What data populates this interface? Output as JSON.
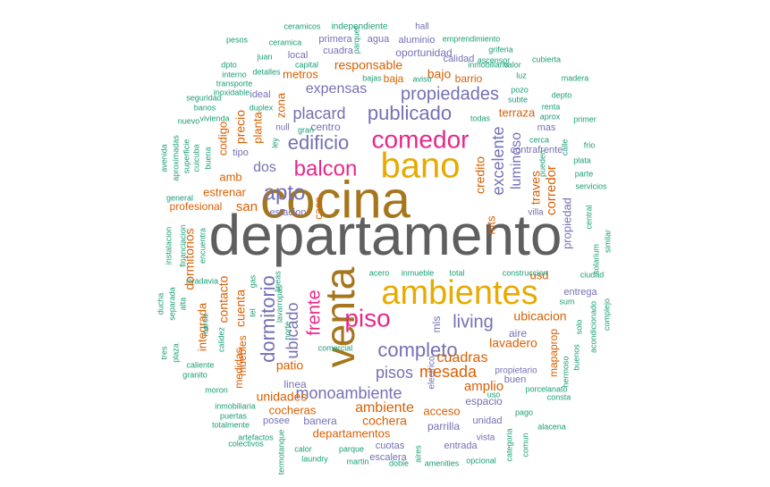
{
  "palette": {
    "gray": "#5f5f5f",
    "gold": "#e6ab02",
    "olive": "#a6761d",
    "pink": "#e7298a",
    "purple": "#7570b3",
    "orange": "#d95f02",
    "teal": "#1b9e77"
  },
  "words": [
    {
      "text": "departamento",
      "color": "gray"
    },
    {
      "text": "cocina",
      "color": "olive"
    },
    {
      "text": "bano",
      "color": "gold"
    },
    {
      "text": "ambientes",
      "color": "gold"
    },
    {
      "text": "venta",
      "color": "olive"
    },
    {
      "text": "comedor",
      "color": "pink"
    },
    {
      "text": "balcon",
      "color": "pink"
    },
    {
      "text": "apto",
      "color": "purple"
    },
    {
      "text": "piso",
      "color": "pink"
    },
    {
      "text": "completo",
      "color": "purple"
    },
    {
      "text": "edificio",
      "color": "purple"
    },
    {
      "text": "publicado",
      "color": "purple"
    },
    {
      "text": "propiedades",
      "color": "purple"
    },
    {
      "text": "dormitorio",
      "color": "purple"
    },
    {
      "text": "frente",
      "color": "pink"
    },
    {
      "text": "living",
      "color": "purple"
    },
    {
      "text": "pisos",
      "color": "purple"
    },
    {
      "text": "monoambiente",
      "color": "purple"
    },
    {
      "text": "placard",
      "color": "purple"
    },
    {
      "text": "expensas",
      "color": "purple"
    },
    {
      "text": "dos",
      "color": "purple"
    },
    {
      "text": "ubicado",
      "color": "purple"
    },
    {
      "text": "mesada",
      "color": "orange"
    },
    {
      "text": "cuadras",
      "color": "orange"
    },
    {
      "text": "ambiente",
      "color": "orange"
    },
    {
      "text": "excelente",
      "color": "purple"
    },
    {
      "text": "luminoso",
      "color": "purple"
    },
    {
      "text": "credito",
      "color": "orange"
    },
    {
      "text": "amplio",
      "color": "orange"
    },
    {
      "text": "lavadero",
      "color": "orange"
    },
    {
      "text": "ubicacion",
      "color": "orange"
    },
    {
      "text": "patio",
      "color": "orange"
    },
    {
      "text": "unidades",
      "color": "orange"
    },
    {
      "text": "cocheras",
      "color": "orange"
    },
    {
      "text": "cochera",
      "color": "orange"
    },
    {
      "text": "departamentos",
      "color": "orange"
    },
    {
      "text": "acceso",
      "color": "orange"
    },
    {
      "text": "estrenar",
      "color": "orange"
    },
    {
      "text": "san",
      "color": "orange"
    },
    {
      "text": "amb",
      "color": "orange"
    },
    {
      "text": "responsable",
      "color": "orange"
    },
    {
      "text": "bajo",
      "color": "orange"
    },
    {
      "text": "metros",
      "color": "orange"
    },
    {
      "text": "planta",
      "color": "orange"
    },
    {
      "text": "precio",
      "color": "orange"
    },
    {
      "text": "codigo",
      "color": "orange"
    },
    {
      "text": "cuenta",
      "color": "orange"
    },
    {
      "text": "contacto",
      "color": "orange"
    },
    {
      "text": "integrada",
      "color": "orange"
    },
    {
      "text": "dormitorios",
      "color": "orange"
    },
    {
      "text": "casa",
      "color": "orange"
    },
    {
      "text": "mts",
      "color": "orange"
    },
    {
      "text": "traves",
      "color": "orange"
    },
    {
      "text": "corredor",
      "color": "orange"
    },
    {
      "text": "terraza",
      "color": "orange"
    },
    {
      "text": "usd",
      "color": "orange"
    },
    {
      "text": "propiedad",
      "color": "purple"
    },
    {
      "text": "mls",
      "color": "purple"
    },
    {
      "text": "barrio",
      "color": "orange"
    },
    {
      "text": "baja",
      "color": "orange"
    },
    {
      "text": "zona",
      "color": "orange"
    },
    {
      "text": "muebles",
      "color": "orange"
    },
    {
      "text": "profesional",
      "color": "orange"
    },
    {
      "text": "mapaprop",
      "color": "orange"
    },
    {
      "text": "medidas",
      "color": "orange"
    },
    {
      "text": "centro",
      "color": "purple"
    },
    {
      "text": "linea",
      "color": "purple"
    },
    {
      "text": "estacion",
      "color": "purple"
    },
    {
      "text": "espacio",
      "color": "purple"
    },
    {
      "text": "parrilla",
      "color": "purple"
    },
    {
      "text": "banera",
      "color": "purple"
    },
    {
      "text": "posee",
      "color": "purple"
    },
    {
      "text": "aire",
      "color": "purple"
    },
    {
      "text": "entrega",
      "color": "purple"
    },
    {
      "text": "buen",
      "color": "purple"
    },
    {
      "text": "oportunidad",
      "color": "purple"
    },
    {
      "text": "cuadra",
      "color": "purple"
    },
    {
      "text": "local",
      "color": "purple"
    },
    {
      "text": "primera",
      "color": "purple"
    },
    {
      "text": "agua",
      "color": "purple"
    },
    {
      "text": "aluminio",
      "color": "purple"
    },
    {
      "text": "calidad",
      "color": "purple"
    },
    {
      "text": "tipo",
      "color": "purple"
    },
    {
      "text": "null",
      "color": "purple"
    },
    {
      "text": "ideal",
      "color": "purple"
    },
    {
      "text": "mas",
      "color": "purple"
    },
    {
      "text": "contrafrente",
      "color": "purple"
    },
    {
      "text": "villa",
      "color": "purple"
    },
    {
      "text": "cuotas",
      "color": "purple"
    },
    {
      "text": "escalera",
      "color": "purple"
    },
    {
      "text": "unidad",
      "color": "purple"
    },
    {
      "text": "entrada",
      "color": "purple"
    },
    {
      "text": "propietario",
      "color": "purple"
    },
    {
      "text": "vista",
      "color": "purple"
    },
    {
      "text": "electrico",
      "color": "purple"
    },
    {
      "text": "hall",
      "color": "purple"
    },
    {
      "text": "independiente",
      "color": "teal"
    },
    {
      "text": "ceramicos",
      "color": "teal"
    },
    {
      "text": "ceramica",
      "color": "teal"
    },
    {
      "text": "pesos",
      "color": "teal"
    },
    {
      "text": "emprendimiento",
      "color": "teal"
    },
    {
      "text": "griferia",
      "color": "teal"
    },
    {
      "text": "ascensor",
      "color": "teal"
    },
    {
      "text": "juan",
      "color": "teal"
    },
    {
      "text": "capital",
      "color": "teal"
    },
    {
      "text": "cubierta",
      "color": "teal"
    },
    {
      "text": "inmobiliario",
      "color": "teal"
    },
    {
      "text": "valor",
      "color": "teal"
    },
    {
      "text": "dpto",
      "color": "teal"
    },
    {
      "text": "interno",
      "color": "teal"
    },
    {
      "text": "detalles",
      "color": "teal"
    },
    {
      "text": "bajas",
      "color": "teal"
    },
    {
      "text": "aviso",
      "color": "teal"
    },
    {
      "text": "luz",
      "color": "teal"
    },
    {
      "text": "madera",
      "color": "teal"
    },
    {
      "text": "transporte",
      "color": "teal"
    },
    {
      "text": "inoxidable",
      "color": "teal"
    },
    {
      "text": "pozo",
      "color": "teal"
    },
    {
      "text": "subte",
      "color": "teal"
    },
    {
      "text": "depto",
      "color": "teal"
    },
    {
      "text": "seguridad",
      "color": "teal"
    },
    {
      "text": "banos",
      "color": "teal"
    },
    {
      "text": "duplex",
      "color": "teal"
    },
    {
      "text": "renta",
      "color": "teal"
    },
    {
      "text": "vivienda",
      "color": "teal"
    },
    {
      "text": "nuevo",
      "color": "teal"
    },
    {
      "text": "aprox",
      "color": "teal"
    },
    {
      "text": "primer",
      "color": "teal"
    },
    {
      "text": "todas",
      "color": "teal"
    },
    {
      "text": "uso",
      "color": "teal"
    },
    {
      "text": "gran",
      "color": "teal"
    },
    {
      "text": "cerca",
      "color": "teal"
    },
    {
      "text": "ley",
      "color": "teal"
    },
    {
      "text": "frio",
      "color": "teal"
    },
    {
      "text": "pueden",
      "color": "teal"
    },
    {
      "text": "calle",
      "color": "teal"
    },
    {
      "text": "plata",
      "color": "teal"
    },
    {
      "text": "parte",
      "color": "teal"
    },
    {
      "text": "servicios",
      "color": "teal"
    },
    {
      "text": "buena",
      "color": "teal"
    },
    {
      "text": "cuicuba",
      "color": "teal"
    },
    {
      "text": "superficie",
      "color": "teal"
    },
    {
      "text": "aproximadas",
      "color": "teal"
    },
    {
      "text": "avenida",
      "color": "teal"
    },
    {
      "text": "general",
      "color": "teal"
    },
    {
      "text": "central",
      "color": "teal"
    },
    {
      "text": "solarium",
      "color": "teal"
    },
    {
      "text": "similar",
      "color": "teal"
    },
    {
      "text": "instalacion",
      "color": "teal"
    },
    {
      "text": "financiacion",
      "color": "teal"
    },
    {
      "text": "encuentra",
      "color": "teal"
    },
    {
      "text": "rivadavia",
      "color": "teal"
    },
    {
      "text": "gas",
      "color": "teal"
    },
    {
      "text": "lineas",
      "color": "teal"
    },
    {
      "text": "acero",
      "color": "teal"
    },
    {
      "text": "inmueble",
      "color": "teal"
    },
    {
      "text": "total",
      "color": "teal"
    },
    {
      "text": "construccion",
      "color": "teal"
    },
    {
      "text": "ciudad",
      "color": "teal"
    },
    {
      "text": "sum",
      "color": "teal"
    },
    {
      "text": "alta",
      "color": "teal"
    },
    {
      "text": "separada",
      "color": "teal"
    },
    {
      "text": "ducha",
      "color": "teal"
    },
    {
      "text": "lavarropas",
      "color": "teal"
    },
    {
      "text": "tel",
      "color": "teal"
    },
    {
      "text": "norte",
      "color": "teal"
    },
    {
      "text": "solo",
      "color": "teal"
    },
    {
      "text": "acondicionado",
      "color": "teal"
    },
    {
      "text": "complejo",
      "color": "teal"
    },
    {
      "text": "marca",
      "color": "teal"
    },
    {
      "text": "calidez",
      "color": "teal"
    },
    {
      "text": "comercial",
      "color": "teal"
    },
    {
      "text": "tres",
      "color": "teal"
    },
    {
      "text": "plaza",
      "color": "teal"
    },
    {
      "text": "caliente",
      "color": "teal"
    },
    {
      "text": "granito",
      "color": "teal"
    },
    {
      "text": "moron",
      "color": "teal"
    },
    {
      "text": "porcelanato",
      "color": "teal"
    },
    {
      "text": "consta",
      "color": "teal"
    },
    {
      "text": "hermoso",
      "color": "teal"
    },
    {
      "text": "buenos",
      "color": "teal"
    },
    {
      "text": "inmobiliaria",
      "color": "teal"
    },
    {
      "text": "puertas",
      "color": "teal"
    },
    {
      "text": "totalmente",
      "color": "teal"
    },
    {
      "text": "pago",
      "color": "teal"
    },
    {
      "text": "alacena",
      "color": "teal"
    },
    {
      "text": "artefactos",
      "color": "teal"
    },
    {
      "text": "colectivos",
      "color": "teal"
    },
    {
      "text": "termotanque",
      "color": "teal"
    },
    {
      "text": "calor",
      "color": "teal"
    },
    {
      "text": "laundry",
      "color": "teal"
    },
    {
      "text": "parque",
      "color": "teal"
    },
    {
      "text": "martin",
      "color": "teal"
    },
    {
      "text": "doble",
      "color": "teal"
    },
    {
      "text": "aires",
      "color": "teal"
    },
    {
      "text": "amenities",
      "color": "teal"
    },
    {
      "text": "opcional",
      "color": "teal"
    },
    {
      "text": "categoria",
      "color": "teal"
    },
    {
      "text": "comun",
      "color": "teal"
    },
    {
      "text": "parquet",
      "color": "teal"
    },
    {
      "text": "pileta",
      "color": "teal"
    }
  ]
}
